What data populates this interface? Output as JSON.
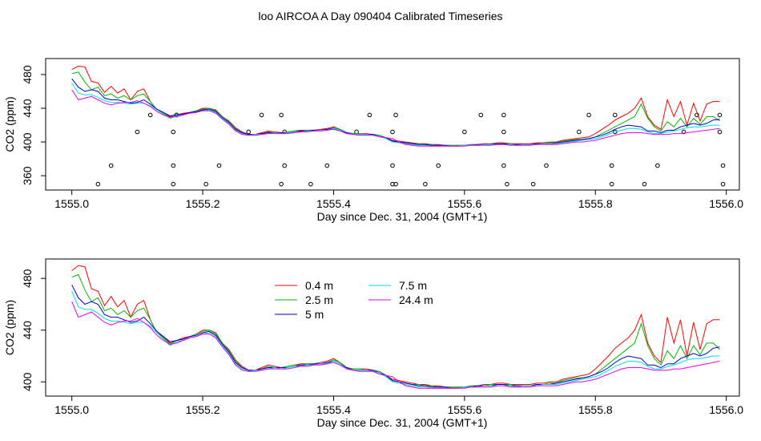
{
  "title": "loo AIRCOA A  Day 090404  Calibrated Timeseries",
  "chart_data": [
    {
      "type": "scatter+line",
      "xlabel": "Day since Dec. 31, 2004 (GMT+1)",
      "ylabel": "CO2 (ppm)",
      "xlim": [
        1554.96,
        1556.02
      ],
      "ylim": [
        343,
        499
      ],
      "xticks": [
        "1555.0",
        "1555.2",
        "1555.4",
        "1555.6",
        "1555.8",
        "1556.0"
      ],
      "yticks": [
        "360",
        "400",
        "440",
        "480"
      ],
      "points_x": [
        1555.04,
        1555.06,
        1555.1,
        1555.12,
        1555.155,
        1555.155,
        1555.155,
        1555.16,
        1555.16,
        1555.205,
        1555.225,
        1555.27,
        1555.29,
        1555.32,
        1555.32,
        1555.325,
        1555.325,
        1555.365,
        1555.39,
        1555.435,
        1555.455,
        1555.49,
        1555.49,
        1555.49,
        1555.495,
        1555.495,
        1555.54,
        1555.56,
        1555.6,
        1555.625,
        1555.66,
        1555.66,
        1555.66,
        1555.665,
        1555.705,
        1555.725,
        1555.775,
        1555.79,
        1555.825,
        1555.825,
        1555.83,
        1555.83,
        1555.875,
        1555.895,
        1555.935,
        1555.955,
        1555.99,
        1555.99,
        1555.995,
        1555.995
      ],
      "points_y": [
        350,
        372,
        412,
        432,
        350,
        372,
        412,
        432,
        432,
        350,
        372,
        412,
        432,
        432,
        350,
        372,
        412,
        350,
        372,
        412,
        432,
        350,
        372,
        412,
        432,
        350,
        350,
        372,
        412,
        432,
        432,
        412,
        372,
        350,
        350,
        372,
        412,
        432,
        350,
        372,
        412,
        432,
        350,
        372,
        412,
        432,
        432,
        412,
        372,
        350
      ]
    },
    {
      "type": "line",
      "xlabel": "Day since Dec. 31, 2004 (GMT+1)",
      "ylabel": "CO2 (ppm)",
      "xlim": [
        1554.96,
        1556.02
      ],
      "ylim": [
        389,
        495
      ],
      "xticks": [
        "1555.0",
        "1555.2",
        "1555.4",
        "1555.6",
        "1555.8",
        "1556.0"
      ],
      "yticks": [
        "400",
        "440",
        "480"
      ],
      "legend_position": "top-center",
      "x": [
        1555.0,
        1555.01,
        1555.02,
        1555.03,
        1555.04,
        1555.05,
        1555.06,
        1555.07,
        1555.08,
        1555.09,
        1555.1,
        1555.11,
        1555.12,
        1555.13,
        1555.14,
        1555.15,
        1555.16,
        1555.17,
        1555.18,
        1555.19,
        1555.2,
        1555.21,
        1555.22,
        1555.23,
        1555.24,
        1555.25,
        1555.26,
        1555.27,
        1555.28,
        1555.29,
        1555.3,
        1555.31,
        1555.32,
        1555.33,
        1555.34,
        1555.35,
        1555.36,
        1555.37,
        1555.38,
        1555.39,
        1555.4,
        1555.41,
        1555.42,
        1555.43,
        1555.44,
        1555.45,
        1555.46,
        1555.47,
        1555.48,
        1555.49,
        1555.5,
        1555.51,
        1555.52,
        1555.53,
        1555.54,
        1555.55,
        1555.56,
        1555.57,
        1555.58,
        1555.59,
        1555.6,
        1555.61,
        1555.62,
        1555.63,
        1555.64,
        1555.65,
        1555.66,
        1555.67,
        1555.68,
        1555.69,
        1555.7,
        1555.71,
        1555.72,
        1555.73,
        1555.74,
        1555.75,
        1555.76,
        1555.77,
        1555.78,
        1555.79,
        1555.8,
        1555.81,
        1555.82,
        1555.83,
        1555.84,
        1555.85,
        1555.86,
        1555.87,
        1555.88,
        1555.89,
        1555.9,
        1555.91,
        1555.92,
        1555.93,
        1555.94,
        1555.95,
        1555.96,
        1555.97,
        1555.98,
        1555.99
      ],
      "series": [
        {
          "name": "0.4 m",
          "color": "#ff0000",
          "values": [
            486,
            490,
            489,
            472,
            470,
            459,
            466,
            458,
            463,
            450,
            460,
            463,
            448,
            438,
            435,
            430,
            432,
            434,
            435,
            437,
            440,
            440,
            438,
            430,
            425,
            417,
            412,
            409,
            409,
            411,
            413,
            412,
            411,
            412,
            413,
            414,
            414,
            414,
            415,
            416,
            418,
            415,
            411,
            410,
            410,
            410,
            409,
            408,
            405,
            402,
            401,
            400,
            399,
            398,
            398,
            397,
            397,
            396,
            396,
            396,
            396,
            397,
            397,
            398,
            398,
            399,
            399,
            398,
            398,
            398,
            398,
            399,
            399,
            400,
            400,
            402,
            403,
            404,
            405,
            406,
            410,
            415,
            420,
            426,
            430,
            434,
            440,
            452,
            430,
            420,
            415,
            450,
            430,
            448,
            420,
            446,
            425,
            445,
            448,
            448
          ]
        },
        {
          "name": "2.5 m",
          "color": "#00bb00",
          "values": [
            481,
            483,
            471,
            462,
            465,
            455,
            457,
            452,
            455,
            450,
            455,
            457,
            448,
            438,
            434,
            429,
            432,
            433,
            435,
            437,
            439,
            440,
            437,
            430,
            424,
            416,
            411,
            409,
            409,
            410,
            412,
            411,
            411,
            412,
            413,
            413,
            414,
            414,
            414,
            415,
            417,
            415,
            411,
            410,
            410,
            409,
            409,
            408,
            405,
            401,
            400,
            399,
            398,
            398,
            397,
            397,
            396,
            396,
            396,
            396,
            396,
            397,
            397,
            397,
            398,
            398,
            398,
            398,
            397,
            397,
            397,
            398,
            398,
            399,
            399,
            401,
            402,
            403,
            403,
            404,
            406,
            410,
            414,
            418,
            422,
            426,
            430,
            445,
            428,
            418,
            413,
            424,
            418,
            428,
            418,
            428,
            421,
            430,
            430,
            425
          ]
        },
        {
          "name": "5 m",
          "color": "#0000cc",
          "values": [
            475,
            465,
            460,
            462,
            460,
            452,
            450,
            450,
            448,
            446,
            447,
            450,
            445,
            439,
            435,
            431,
            432,
            433,
            435,
            436,
            438,
            439,
            436,
            429,
            423,
            415,
            411,
            409,
            409,
            410,
            411,
            411,
            411,
            411,
            412,
            413,
            413,
            414,
            414,
            415,
            416,
            414,
            411,
            409,
            409,
            409,
            409,
            407,
            405,
            401,
            400,
            399,
            398,
            397,
            397,
            396,
            396,
            396,
            395,
            395,
            396,
            396,
            397,
            397,
            397,
            398,
            398,
            397,
            397,
            397,
            397,
            398,
            398,
            398,
            399,
            400,
            401,
            402,
            403,
            404,
            406,
            408,
            411,
            415,
            418,
            420,
            419,
            418,
            413,
            413,
            411,
            414,
            414,
            418,
            420,
            422,
            420,
            422,
            426,
            427
          ]
        },
        {
          "name": "7.5 m",
          "color": "#00e0e0",
          "values": [
            470,
            458,
            456,
            456,
            453,
            449,
            447,
            447,
            446,
            445,
            446,
            446,
            443,
            438,
            433,
            428,
            431,
            432,
            434,
            435,
            437,
            438,
            435,
            428,
            422,
            414,
            410,
            408,
            409,
            409,
            410,
            411,
            410,
            411,
            412,
            412,
            413,
            413,
            414,
            414,
            416,
            414,
            410,
            409,
            409,
            409,
            408,
            407,
            404,
            400,
            399,
            398,
            397,
            396,
            396,
            395,
            395,
            395,
            395,
            395,
            396,
            396,
            396,
            397,
            397,
            397,
            397,
            397,
            396,
            397,
            397,
            397,
            398,
            398,
            398,
            399,
            400,
            401,
            402,
            403,
            404,
            406,
            409,
            412,
            414,
            416,
            416,
            415,
            412,
            410,
            410,
            412,
            413,
            415,
            417,
            418,
            418,
            419,
            420,
            420
          ]
        },
        {
          "name": "24.4 m",
          "color": "#ee00ee",
          "values": [
            462,
            450,
            452,
            454,
            450,
            446,
            444,
            446,
            447,
            447,
            449,
            446,
            442,
            436,
            432,
            429,
            430,
            432,
            434,
            435,
            437,
            437,
            434,
            427,
            421,
            413,
            409,
            408,
            408,
            409,
            410,
            410,
            410,
            410,
            411,
            412,
            412,
            413,
            413,
            414,
            415,
            413,
            410,
            409,
            408,
            408,
            408,
            406,
            405,
            404,
            400,
            397,
            396,
            395,
            395,
            395,
            395,
            395,
            395,
            395,
            395,
            396,
            396,
            396,
            396,
            397,
            397,
            396,
            396,
            396,
            396,
            397,
            397,
            397,
            397,
            398,
            399,
            400,
            400,
            401,
            402,
            404,
            406,
            408,
            410,
            411,
            411,
            411,
            410,
            409,
            409,
            409,
            410,
            410,
            411,
            412,
            413,
            414,
            415,
            416
          ]
        }
      ]
    }
  ]
}
